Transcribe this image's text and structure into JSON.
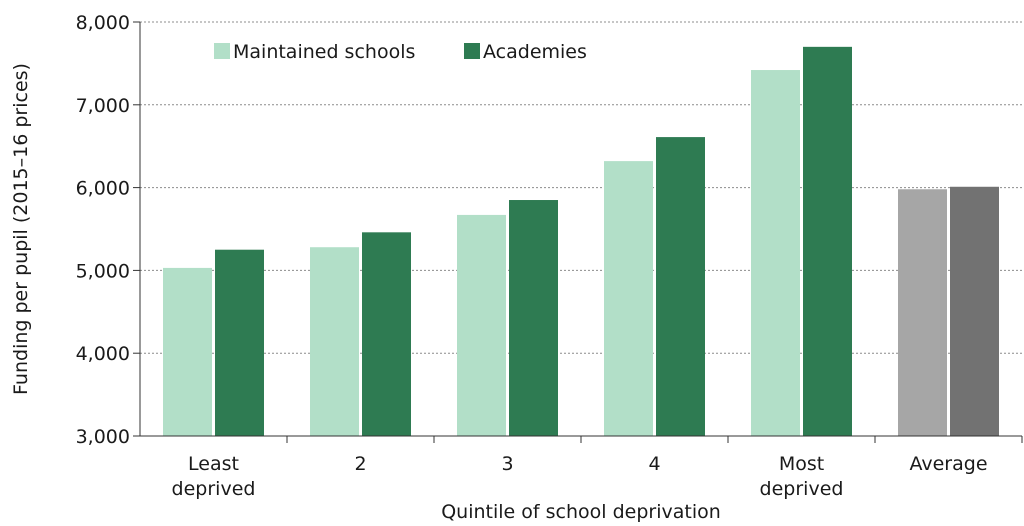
{
  "chart_data": {
    "type": "bar",
    "title": "",
    "xlabel": "Quintile of school deprivation",
    "ylabel": "Funding per pupil (2015–16 prices)",
    "ylim": [
      3000,
      8000
    ],
    "yticks": [
      "3,000",
      "4,000",
      "5,000",
      "6,000",
      "7,000",
      "8,000"
    ],
    "ytick_values": [
      3000,
      4000,
      5000,
      6000,
      7000,
      8000
    ],
    "grid": "horizontal dotted",
    "legend_position": "top-left",
    "categories": [
      [
        "Least",
        "deprived"
      ],
      [
        "2"
      ],
      [
        "3"
      ],
      [
        "4"
      ],
      [
        "Most",
        "deprived"
      ],
      [
        "Average"
      ]
    ],
    "series": [
      {
        "name": "Maintained schools",
        "color": "#b2dfc8",
        "average_color": "#a6a6a6",
        "values": [
          5030,
          5280,
          5670,
          6320,
          7420,
          5980
        ]
      },
      {
        "name": "Academies",
        "color": "#2e7b52",
        "average_color": "#727272",
        "values": [
          5250,
          5460,
          5850,
          6610,
          7700,
          6010
        ]
      }
    ]
  }
}
